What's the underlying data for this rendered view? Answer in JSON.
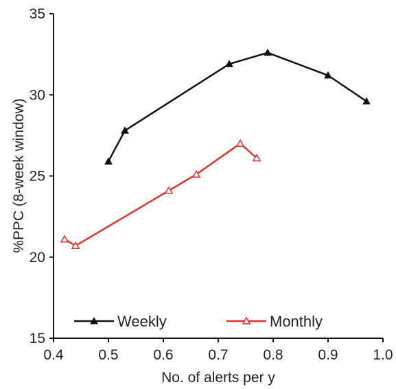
{
  "chart_data": {
    "type": "line",
    "xlabel": "No. of alerts per y",
    "ylabel": "%PPC (8-week window)",
    "xlim": [
      0.4,
      1.0
    ],
    "ylim": [
      15,
      35
    ],
    "x_ticks": [
      "0.4",
      "0.5",
      "0.6",
      "0.7",
      "0.8",
      "0.9",
      "1.0"
    ],
    "y_ticks": [
      "15",
      "20",
      "25",
      "30",
      "35"
    ],
    "grid": false,
    "legend_position": "bottom",
    "series": [
      {
        "name": "Weekly",
        "color": "#111111",
        "marker": "filled-triangle",
        "points": [
          {
            "x": 0.5,
            "y": 25.9
          },
          {
            "x": 0.53,
            "y": 27.8
          },
          {
            "x": 0.72,
            "y": 31.9
          },
          {
            "x": 0.79,
            "y": 32.6
          },
          {
            "x": 0.9,
            "y": 31.2
          },
          {
            "x": 0.97,
            "y": 29.6
          }
        ]
      },
      {
        "name": "Monthly",
        "color": "#e8302a",
        "marker": "open-triangle",
        "points": [
          {
            "x": 0.42,
            "y": 21.1
          },
          {
            "x": 0.44,
            "y": 20.7
          },
          {
            "x": 0.61,
            "y": 24.1
          },
          {
            "x": 0.66,
            "y": 25.1
          },
          {
            "x": 0.74,
            "y": 27.0
          },
          {
            "x": 0.77,
            "y": 26.1
          }
        ]
      }
    ]
  }
}
